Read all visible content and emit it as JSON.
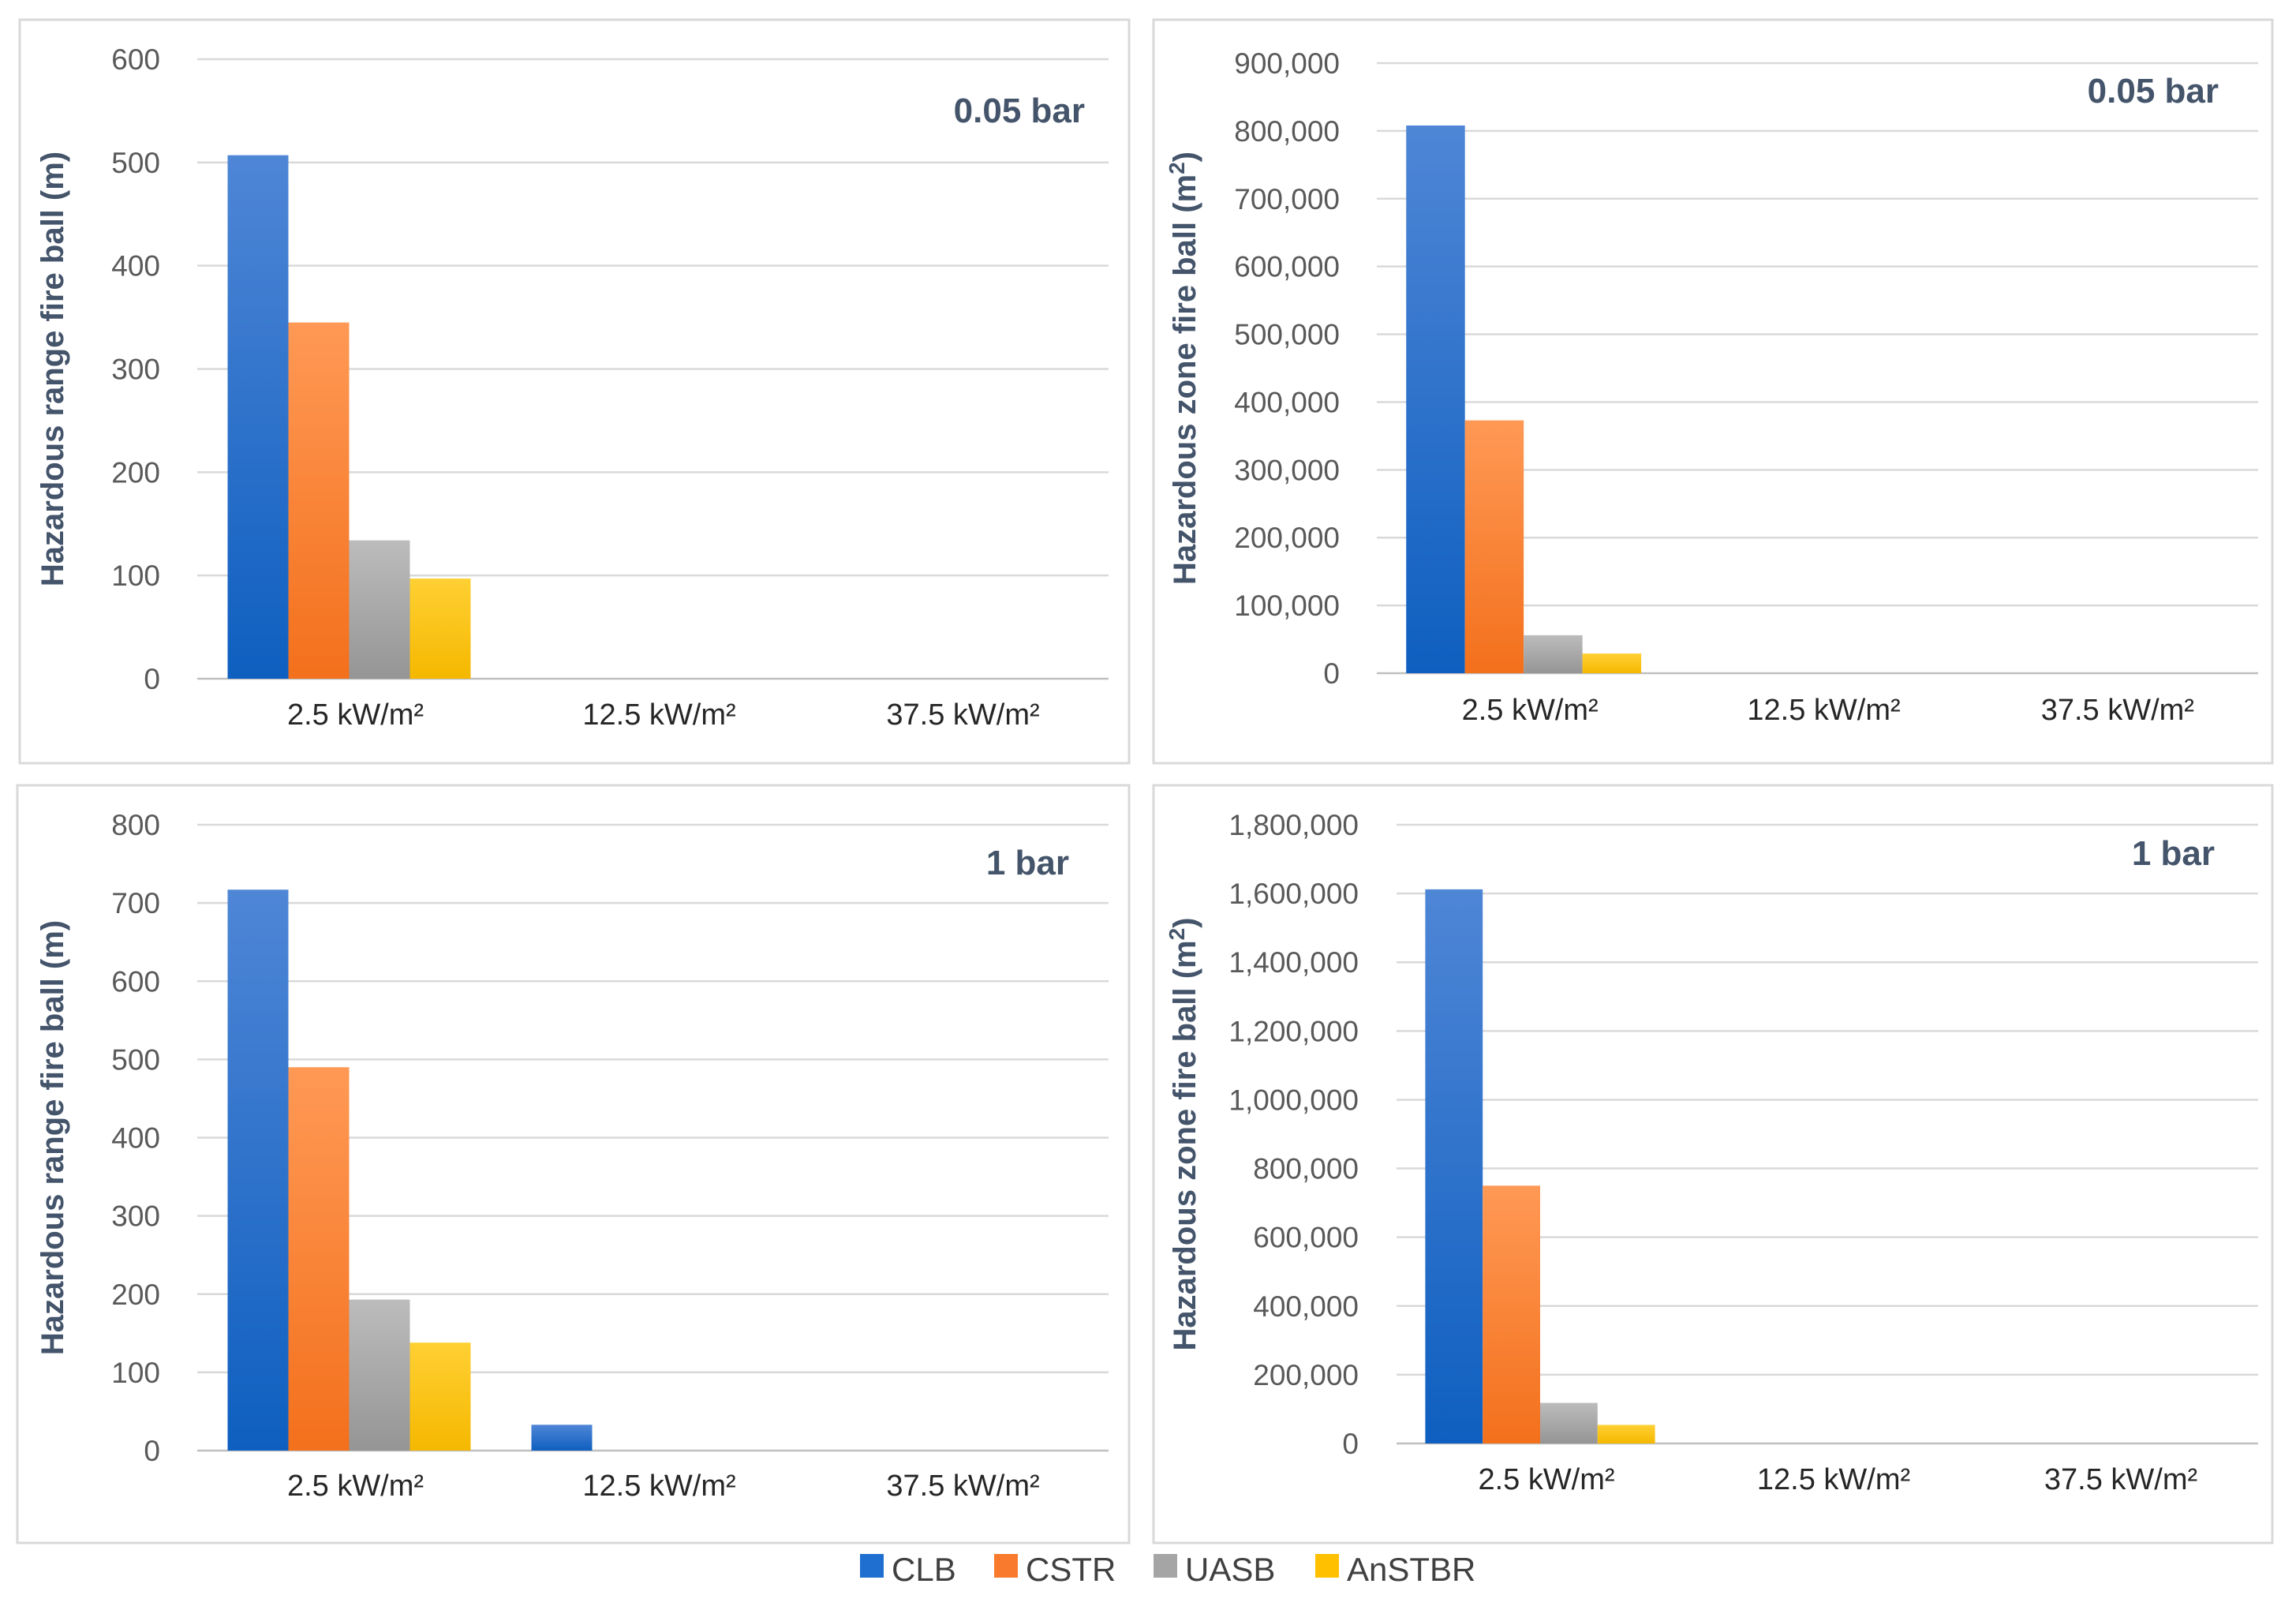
{
  "chart_data": [
    {
      "id": "p1",
      "type": "bar",
      "title": "0.05 bar",
      "ylabel": "Hazardous range fire ball (m)",
      "ylabel_sup": "",
      "ylabel_suffix": "",
      "categories": [
        "2.5 kW/m²",
        "12.5 kW/m²",
        "37.5 kW/m²"
      ],
      "ylim": [
        0,
        600
      ],
      "yticks": [
        0,
        100,
        200,
        300,
        400,
        500,
        600
      ],
      "tick_labels": [
        "0",
        "100",
        "200",
        "300",
        "400",
        "500",
        "600"
      ],
      "series": [
        {
          "name": "CLB",
          "values": [
            507,
            0,
            0
          ]
        },
        {
          "name": "CSTR",
          "values": [
            345,
            0,
            0
          ]
        },
        {
          "name": "UASB",
          "values": [
            134,
            0,
            0
          ]
        },
        {
          "name": "AnSTBR",
          "values": [
            97,
            0,
            0
          ]
        }
      ]
    },
    {
      "id": "p2",
      "type": "bar",
      "title": "0.05 bar",
      "ylabel": "Hazardous zone fire ball (m",
      "ylabel_sup": "2",
      "ylabel_suffix": ")",
      "categories": [
        "2.5 kW/m²",
        "12.5 kW/m²",
        "37.5 kW/m²"
      ],
      "ylim": [
        0,
        900000
      ],
      "yticks": [
        0,
        100000,
        200000,
        300000,
        400000,
        500000,
        600000,
        700000,
        800000,
        900000
      ],
      "tick_labels": [
        "0",
        "100,000",
        "200,000",
        "300,000",
        "400,000",
        "500,000",
        "600,000",
        "700,000",
        "800,000",
        "900,000"
      ],
      "series": [
        {
          "name": "CLB",
          "values": [
            808000,
            0,
            0
          ]
        },
        {
          "name": "CSTR",
          "values": [
            373000,
            0,
            0
          ]
        },
        {
          "name": "UASB",
          "values": [
            56000,
            0,
            0
          ]
        },
        {
          "name": "AnSTBR",
          "values": [
            29000,
            0,
            0
          ]
        }
      ]
    },
    {
      "id": "p3",
      "type": "bar",
      "title": "1 bar",
      "ylabel": "Hazardous range fire ball (m)",
      "ylabel_sup": "",
      "ylabel_suffix": "",
      "categories": [
        "2.5 kW/m²",
        "12.5 kW/m²",
        "37.5 kW/m²"
      ],
      "ylim": [
        0,
        800
      ],
      "yticks": [
        0,
        100,
        200,
        300,
        400,
        500,
        600,
        700,
        800
      ],
      "tick_labels": [
        "0",
        "100",
        "200",
        "300",
        "400",
        "500",
        "600",
        "700",
        "800"
      ],
      "series": [
        {
          "name": "CLB",
          "values": [
            717,
            33,
            0
          ]
        },
        {
          "name": "CSTR",
          "values": [
            490,
            0,
            0
          ]
        },
        {
          "name": "UASB",
          "values": [
            193,
            0,
            0
          ]
        },
        {
          "name": "AnSTBR",
          "values": [
            138,
            0,
            0
          ]
        }
      ]
    },
    {
      "id": "p4",
      "type": "bar",
      "title": "1 bar",
      "ylabel": "Hazardous zone fire ball (m",
      "ylabel_sup": "2",
      "ylabel_suffix": ")",
      "categories": [
        "2.5 kW/m²",
        "12.5 kW/m²",
        "37.5 kW/m²"
      ],
      "ylim": [
        0,
        1800000
      ],
      "yticks": [
        0,
        200000,
        400000,
        600000,
        800000,
        1000000,
        1200000,
        1400000,
        1600000,
        1800000
      ],
      "tick_labels": [
        "0",
        "200,000",
        "400,000",
        "600,000",
        "800,000",
        "1,000,000",
        "1,200,000",
        "1,400,000",
        "1,600,000",
        "1,800,000"
      ],
      "series": [
        {
          "name": "CLB",
          "values": [
            1612000,
            0,
            0
          ]
        },
        {
          "name": "CSTR",
          "values": [
            750000,
            0,
            0
          ]
        },
        {
          "name": "UASB",
          "values": [
            118000,
            0,
            0
          ]
        },
        {
          "name": "AnSTBR",
          "values": [
            54000,
            0,
            0
          ]
        }
      ]
    }
  ],
  "legend": {
    "position": "bottom-center",
    "items": [
      {
        "name": "CLB",
        "color": "#1f6fd1"
      },
      {
        "name": "CSTR",
        "color": "#f97a2c"
      },
      {
        "name": "UASB",
        "color": "#a5a5a5"
      },
      {
        "name": "AnSTBR",
        "color": "#ffc000"
      }
    ]
  },
  "colors": {
    "CLB": {
      "top": "#4f86d6",
      "bottom": "#0e5fc0"
    },
    "CSTR": {
      "top": "#ff9955",
      "bottom": "#f3701c"
    },
    "UASB": {
      "top": "#bcbcbc",
      "bottom": "#959595"
    },
    "AnSTBR": {
      "top": "#ffd033",
      "bottom": "#f5b800"
    }
  }
}
